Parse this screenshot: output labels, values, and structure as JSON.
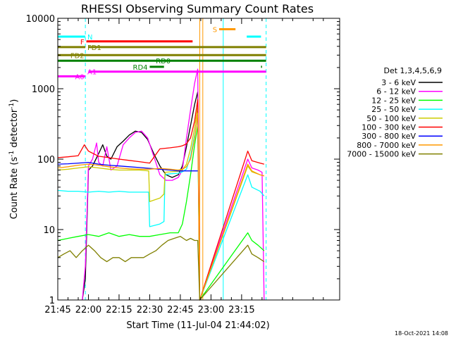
{
  "chart_data": {
    "type": "line",
    "title": "RHESSI Observing Summary Count Rates",
    "xlabel": "Start Time (11-Jul-04 21:44:02)",
    "ylabel_main": "Count Rate (s",
    "ylabel_sup1": "-1",
    "ylabel_mid": " detector",
    "ylabel_sup2": "-1",
    "ylabel_end": ")",
    "footer_date": "18-Oct-2021 14:08",
    "x_range_minutes": [
      -15,
      123
    ],
    "ylim": [
      1,
      10000
    ],
    "yscale": "log",
    "x_ticks": [
      {
        "label": "21:45",
        "minute": -15
      },
      {
        "label": "22:00",
        "minute": 0
      },
      {
        "label": "22:15",
        "minute": 15
      },
      {
        "label": "22:30",
        "minute": 30
      },
      {
        "label": "22:45",
        "minute": 45
      },
      {
        "label": "23:00",
        "minute": 60
      },
      {
        "label": "23:15",
        "minute": 75
      }
    ],
    "y_ticks": [
      {
        "label": "1",
        "value": 1
      },
      {
        "label": "10",
        "value": 10
      },
      {
        "label": "100",
        "value": 100
      },
      {
        "label": "1000",
        "value": 1000
      },
      {
        "label": "10000",
        "value": 10000
      }
    ],
    "legend_title": "Det 1,3,4,5,6,9",
    "series": [
      {
        "name": "3 - 6 keV",
        "color": "#000000",
        "values": [
          [
            -3,
            1
          ],
          [
            -1.5,
            2
          ],
          [
            0,
            70
          ],
          [
            2,
            80
          ],
          [
            5,
            120
          ],
          [
            7,
            160
          ],
          [
            9,
            110
          ],
          [
            11,
            100
          ],
          [
            14,
            150
          ],
          [
            17,
            180
          ],
          [
            20,
            220
          ],
          [
            23,
            250
          ],
          [
            26,
            240
          ],
          [
            29,
            190
          ],
          [
            32,
            120
          ],
          [
            35,
            80
          ],
          [
            38,
            60
          ],
          [
            41,
            55
          ],
          [
            44,
            60
          ],
          [
            46,
            80
          ],
          [
            48,
            150
          ],
          [
            50,
            300
          ],
          [
            52,
            600
          ],
          [
            53.5,
            900
          ],
          [
            54.5,
            1
          ]
        ]
      },
      {
        "name": "6 - 12 keV",
        "color": "#ff00ff",
        "values": [
          [
            -3,
            1
          ],
          [
            -1.5,
            3
          ],
          [
            0,
            80
          ],
          [
            2,
            100
          ],
          [
            4,
            170
          ],
          [
            5,
            90
          ],
          [
            7,
            80
          ],
          [
            9,
            150
          ],
          [
            11,
            70
          ],
          [
            14,
            80
          ],
          [
            17,
            160
          ],
          [
            20,
            200
          ],
          [
            23,
            240
          ],
          [
            26,
            250
          ],
          [
            29,
            200
          ],
          [
            32,
            110
          ],
          [
            35,
            60
          ],
          [
            38,
            50
          ],
          [
            41,
            50
          ],
          [
            44,
            55
          ],
          [
            46,
            70
          ],
          [
            48,
            200
          ],
          [
            50,
            500
          ],
          [
            52,
            1200
          ],
          [
            53.5,
            1900
          ],
          [
            54.5,
            1
          ],
          [
            78,
            100
          ],
          [
            80,
            75
          ],
          [
            83,
            70
          ],
          [
            85,
            65
          ],
          [
            86,
            1
          ]
        ]
      },
      {
        "name": "12 - 25 keV",
        "color": "#00ff00",
        "values": [
          [
            -15,
            7
          ],
          [
            -10,
            7.5
          ],
          [
            -5,
            8
          ],
          [
            0,
            8.5
          ],
          [
            5,
            8
          ],
          [
            10,
            9
          ],
          [
            15,
            8
          ],
          [
            20,
            8.5
          ],
          [
            25,
            8
          ],
          [
            30,
            8
          ],
          [
            35,
            8.5
          ],
          [
            40,
            9
          ],
          [
            44,
            9
          ],
          [
            46,
            12
          ],
          [
            48,
            25
          ],
          [
            50,
            60
          ],
          [
            52,
            160
          ],
          [
            53.5,
            300
          ],
          [
            54.5,
            1
          ],
          [
            78,
            9
          ],
          [
            80,
            7
          ],
          [
            83,
            6
          ],
          [
            86,
            5
          ]
        ]
      },
      {
        "name": "25 - 50 keV",
        "color": "#00ffff",
        "values": [
          [
            -15,
            36
          ],
          [
            -10,
            35
          ],
          [
            -5,
            35
          ],
          [
            0,
            34
          ],
          [
            5,
            35
          ],
          [
            10,
            34
          ],
          [
            15,
            35
          ],
          [
            20,
            34
          ],
          [
            25,
            34
          ],
          [
            29.5,
            34
          ],
          [
            30,
            11
          ],
          [
            35,
            12
          ],
          [
            37,
            13
          ],
          [
            37.5,
            60
          ],
          [
            40,
            62
          ],
          [
            44,
            63
          ],
          [
            46,
            66
          ],
          [
            48,
            72
          ],
          [
            50,
            110
          ],
          [
            52,
            220
          ],
          [
            53.5,
            400
          ],
          [
            54.5,
            1
          ],
          [
            78,
            60
          ],
          [
            80,
            40
          ],
          [
            84,
            35
          ],
          [
            86,
            30
          ]
        ]
      },
      {
        "name": "50 - 100 keV",
        "color": "#cccc00",
        "values": [
          [
            -15,
            70
          ],
          [
            -10,
            72
          ],
          [
            -5,
            75
          ],
          [
            0,
            78
          ],
          [
            5,
            75
          ],
          [
            10,
            72
          ],
          [
            15,
            70
          ],
          [
            20,
            70
          ],
          [
            25,
            70
          ],
          [
            29.5,
            68
          ],
          [
            30,
            25
          ],
          [
            35,
            28
          ],
          [
            37,
            32
          ],
          [
            37.5,
            65
          ],
          [
            40,
            66
          ],
          [
            44,
            67
          ],
          [
            46,
            70
          ],
          [
            48,
            85
          ],
          [
            50,
            140
          ],
          [
            52,
            280
          ],
          [
            53.5,
            550
          ],
          [
            54.5,
            1
          ],
          [
            78,
            80
          ],
          [
            80,
            66
          ],
          [
            84,
            60
          ],
          [
            86,
            58
          ]
        ]
      },
      {
        "name": "100 - 300 keV",
        "color": "#ff0000",
        "values": [
          [
            -15,
            105
          ],
          [
            -10,
            108
          ],
          [
            -5,
            112
          ],
          [
            -2,
            160
          ],
          [
            0,
            130
          ],
          [
            5,
            110
          ],
          [
            10,
            105
          ],
          [
            15,
            100
          ],
          [
            20,
            96
          ],
          [
            25,
            92
          ],
          [
            30,
            88
          ],
          [
            35,
            140
          ],
          [
            40,
            145
          ],
          [
            44,
            150
          ],
          [
            46,
            155
          ],
          [
            48,
            165
          ],
          [
            50,
            200
          ],
          [
            52,
            350
          ],
          [
            53.5,
            700
          ],
          [
            54.5,
            1
          ],
          [
            78,
            130
          ],
          [
            80,
            95
          ],
          [
            84,
            88
          ],
          [
            86,
            85
          ]
        ]
      },
      {
        "name": "300 - 800 keV",
        "color": "#0000ff",
        "values": [
          [
            -15,
            85
          ],
          [
            -10,
            86
          ],
          [
            -5,
            88
          ],
          [
            0,
            90
          ],
          [
            5,
            85
          ],
          [
            10,
            82
          ],
          [
            15,
            80
          ],
          [
            20,
            78
          ],
          [
            25,
            76
          ],
          [
            30,
            74
          ],
          [
            35,
            72
          ],
          [
            40,
            70
          ],
          [
            44,
            68
          ],
          [
            46,
            68
          ],
          [
            48,
            68
          ],
          [
            52,
            68
          ],
          [
            53.5,
            68
          ]
        ]
      },
      {
        "name": "800 - 7000 keV",
        "color": "#ff9900",
        "values": [
          [
            -15,
            75
          ],
          [
            -10,
            78
          ],
          [
            -5,
            82
          ],
          [
            0,
            85
          ],
          [
            5,
            82
          ],
          [
            10,
            78
          ],
          [
            15,
            75
          ],
          [
            20,
            73
          ],
          [
            25,
            72
          ],
          [
            30,
            72
          ],
          [
            35,
            74
          ],
          [
            40,
            72
          ],
          [
            44,
            70
          ],
          [
            46,
            72
          ],
          [
            48,
            78
          ],
          [
            50,
            100
          ],
          [
            52,
            200
          ],
          [
            53.5,
            450
          ],
          [
            54.5,
            1
          ],
          [
            78,
            85
          ],
          [
            80,
            68
          ],
          [
            84,
            60
          ],
          [
            86,
            58
          ]
        ]
      },
      {
        "name": "7000 - 15000 keV",
        "color": "#808000",
        "values": [
          [
            -15,
            4
          ],
          [
            -12,
            4.5
          ],
          [
            -9,
            5
          ],
          [
            -6,
            4
          ],
          [
            -3,
            5
          ],
          [
            0,
            6
          ],
          [
            3,
            5
          ],
          [
            6,
            4
          ],
          [
            9,
            3.5
          ],
          [
            12,
            4
          ],
          [
            15,
            4
          ],
          [
            18,
            3.5
          ],
          [
            21,
            4
          ],
          [
            24,
            4
          ],
          [
            27,
            4
          ],
          [
            30,
            4.5
          ],
          [
            33,
            5
          ],
          [
            36,
            6
          ],
          [
            39,
            7
          ],
          [
            42,
            7.5
          ],
          [
            45,
            8
          ],
          [
            48,
            7
          ],
          [
            50,
            7.5
          ],
          [
            52,
            7
          ],
          [
            53.5,
            7
          ],
          [
            54.5,
            1
          ],
          [
            78,
            6
          ],
          [
            80,
            4.5
          ],
          [
            83,
            4
          ],
          [
            86,
            3.5
          ]
        ]
      }
    ],
    "flags": [
      {
        "label": "N",
        "color": "#00ffff",
        "segments": [
          [
            -15,
            -1.5
          ],
          [
            77.5,
            84.5
          ]
        ],
        "value": 5500,
        "label_minute": -0.5,
        "label_side": "right"
      },
      {
        "label": "S",
        "color": "#ff9900",
        "segments": [
          [
            64,
            72
          ]
        ],
        "value": 7000,
        "label_minute": 63,
        "label_side": "left"
      },
      {
        "label": "F",
        "color": "#ff0000",
        "segments": [
          [
            -1,
            51
          ]
        ],
        "value": 4700,
        "label_minute": -2,
        "label_side": "left"
      },
      {
        "label": "FD1",
        "color": "#808000",
        "segments": [
          [
            -15,
            -1.5
          ],
          [
            0,
            87
          ]
        ],
        "value": 3900,
        "label_minute": -0.5,
        "label_side": "right"
      },
      {
        "label": "FD2",
        "color": "#808000",
        "segments": [
          [
            -15,
            87
          ]
        ],
        "value": 3000,
        "label_minute": -2,
        "label_side": "left"
      },
      {
        "label": "RD0",
        "color": "#008000",
        "segments": [
          [
            -15,
            87
          ]
        ],
        "value": 2500,
        "label_minute": 33,
        "label_side": "right"
      },
      {
        "label": "RD4",
        "color": "#008000",
        "segments": [
          [
            30,
            37
          ],
          [
            84.5,
            85
          ]
        ],
        "value": 2050,
        "label_minute": 29,
        "label_side": "left"
      },
      {
        "label": "A0",
        "color": "#ff00ff",
        "segments": [
          [
            -15,
            -1.5
          ]
        ],
        "value": 1500,
        "label_minute": -2,
        "label_side": "left"
      },
      {
        "label": "A1",
        "color": "#ff00ff",
        "segments": [
          [
            0,
            87
          ]
        ],
        "value": 1750,
        "label_minute": -0.5,
        "label_side": "right"
      }
    ],
    "vertical_lines": [
      {
        "minute": -1.5,
        "color": "#00ffff",
        "dashed": true
      },
      {
        "minute": 54.5,
        "color": "#ff9900",
        "dashed": false
      },
      {
        "minute": 56,
        "color": "#ff9900",
        "dashed": false
      },
      {
        "minute": 66,
        "color": "#00ffff",
        "dashed": false
      },
      {
        "minute": 87,
        "color": "#00ffff",
        "dashed": true
      }
    ]
  }
}
